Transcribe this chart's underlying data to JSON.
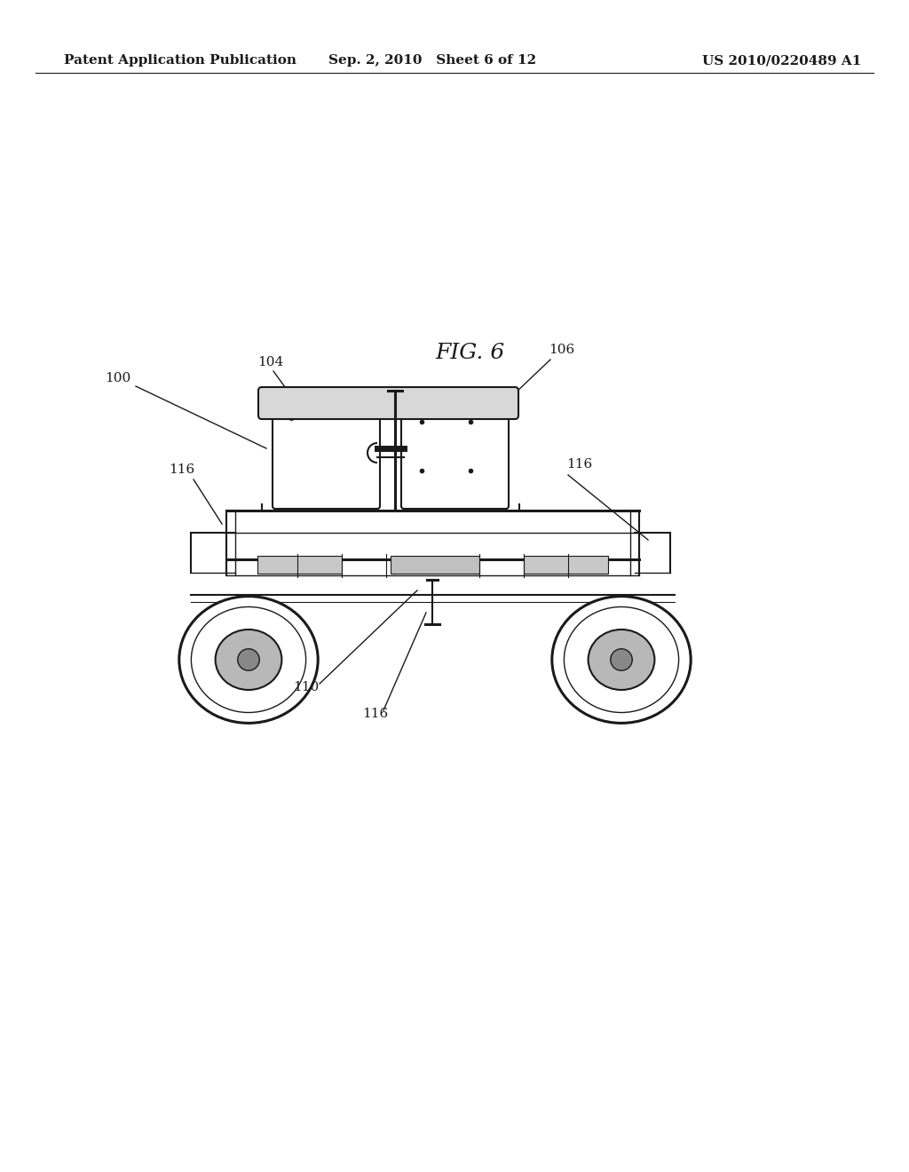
{
  "background_color": "#ffffff",
  "header_left": "Patent Application Publication",
  "header_center": "Sep. 2, 2010   Sheet 6 of 12",
  "header_right": "US 2010/0220489 A1",
  "fig_label": "FIG. 6",
  "line_color": "#1a1a1a",
  "text_color": "#1a1a1a",
  "header_fontsize": 11,
  "label_fontsize": 11,
  "fig_label_fontsize": 18
}
